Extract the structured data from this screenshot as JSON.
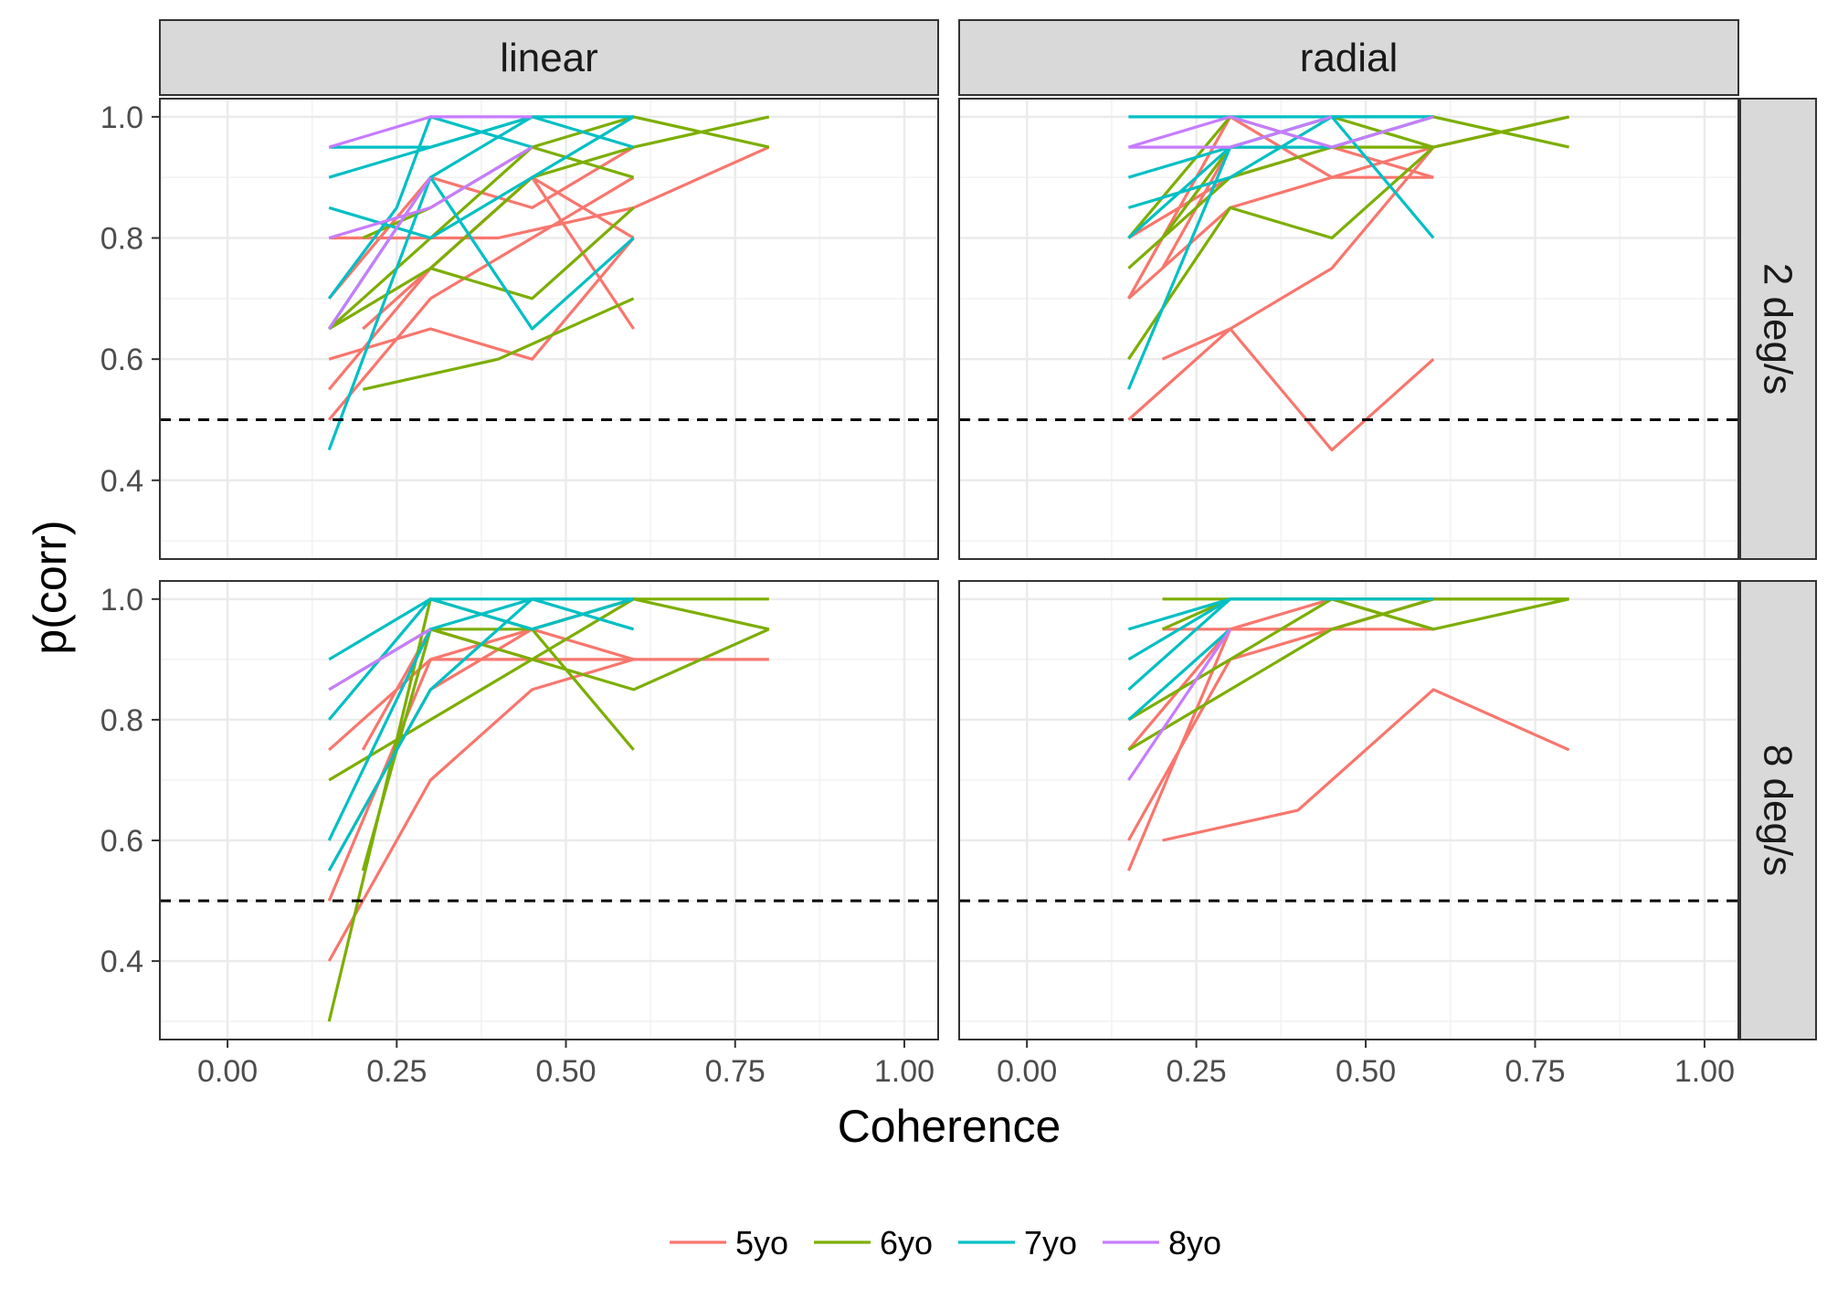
{
  "chart_data": {
    "type": "line",
    "facets": {
      "columns": [
        "linear",
        "radial"
      ],
      "rows": [
        "2 deg/s",
        "8 deg/s"
      ]
    },
    "xlabel": "Coherence",
    "ylabel": "p(corr)",
    "xlim": [
      -0.1,
      1.05
    ],
    "ylim": [
      0.27,
      1.03
    ],
    "x_ticks": [
      0.0,
      0.25,
      0.5,
      0.75,
      1.0
    ],
    "x_tick_labels": [
      "0.00",
      "0.25",
      "0.50",
      "0.75",
      "1.00"
    ],
    "y_ticks": [
      0.4,
      0.6,
      0.8,
      1.0
    ],
    "y_tick_labels": [
      "0.4",
      "0.6",
      "0.8",
      "1.0"
    ],
    "reference_line": {
      "y": 0.5,
      "style": "dashed",
      "color": "#000000"
    },
    "grid": true,
    "legend_position": "bottom",
    "groups": [
      {
        "name": "5yo",
        "color": "#F8766D"
      },
      {
        "name": "6yo",
        "color": "#7CAE00"
      },
      {
        "name": "7yo",
        "color": "#00BFC4"
      },
      {
        "name": "8yo",
        "color": "#C77CFF"
      }
    ],
    "panels": [
      {
        "col": "linear",
        "row": "2 deg/s",
        "series": [
          {
            "group": "5yo",
            "x": [
              0.15,
              0.3,
              0.45,
              0.6
            ],
            "y": [
              0.55,
              0.75,
              0.9,
              0.65
            ]
          },
          {
            "group": "5yo",
            "x": [
              0.15,
              0.3,
              0.45,
              0.6
            ],
            "y": [
              0.6,
              0.65,
              0.6,
              0.8
            ]
          },
          {
            "group": "5yo",
            "x": [
              0.15,
              0.3,
              0.45,
              0.6
            ],
            "y": [
              0.7,
              0.9,
              0.85,
              0.95
            ]
          },
          {
            "group": "5yo",
            "x": [
              0.15,
              0.3,
              0.45,
              0.6
            ],
            "y": [
              0.5,
              0.7,
              0.8,
              0.9
            ]
          },
          {
            "group": "5yo",
            "x": [
              0.15,
              0.4,
              0.6,
              0.8
            ],
            "y": [
              0.8,
              0.8,
              0.85,
              0.95
            ]
          },
          {
            "group": "5yo",
            "x": [
              0.2,
              0.45,
              0.6
            ],
            "y": [
              0.65,
              0.9,
              0.8
            ]
          },
          {
            "group": "6yo",
            "x": [
              0.2,
              0.4,
              0.6
            ],
            "y": [
              0.55,
              0.6,
              0.7
            ]
          },
          {
            "group": "6yo",
            "x": [
              0.15,
              0.3,
              0.45,
              0.6
            ],
            "y": [
              0.65,
              0.75,
              0.7,
              0.85
            ]
          },
          {
            "group": "6yo",
            "x": [
              0.15,
              0.45,
              0.6,
              0.8
            ],
            "y": [
              0.65,
              0.95,
              1.0,
              0.95
            ]
          },
          {
            "group": "6yo",
            "x": [
              0.2,
              0.3,
              0.45,
              0.6
            ],
            "y": [
              0.8,
              0.85,
              0.95,
              0.9
            ]
          },
          {
            "group": "6yo",
            "x": [
              0.3,
              0.45,
              0.6,
              0.8
            ],
            "y": [
              0.75,
              0.9,
              0.95,
              1.0
            ]
          },
          {
            "group": "7yo",
            "x": [
              0.15,
              0.3,
              0.45,
              0.6
            ],
            "y": [
              0.45,
              0.9,
              0.65,
              0.8
            ]
          },
          {
            "group": "7yo",
            "x": [
              0.15,
              0.3,
              0.45,
              0.6
            ],
            "y": [
              0.9,
              0.95,
              1.0,
              1.0
            ]
          },
          {
            "group": "7yo",
            "x": [
              0.15,
              0.3,
              0.45,
              0.6
            ],
            "y": [
              0.95,
              0.95,
              1.0,
              0.95
            ]
          },
          {
            "group": "7yo",
            "x": [
              0.15,
              0.25,
              0.3,
              0.45
            ],
            "y": [
              0.7,
              0.85,
              1.0,
              0.95
            ]
          },
          {
            "group": "7yo",
            "x": [
              0.15,
              0.3,
              0.45,
              0.6
            ],
            "y": [
              0.85,
              0.8,
              0.9,
              1.0
            ]
          },
          {
            "group": "7yo",
            "x": [
              0.15,
              0.3,
              0.45
            ],
            "y": [
              0.65,
              0.9,
              1.0
            ]
          },
          {
            "group": "8yo",
            "x": [
              0.15,
              0.3,
              0.45
            ],
            "y": [
              0.95,
              1.0,
              1.0
            ]
          },
          {
            "group": "8yo",
            "x": [
              0.15,
              0.3,
              0.45
            ],
            "y": [
              0.8,
              0.85,
              0.95
            ]
          },
          {
            "group": "8yo",
            "x": [
              0.15,
              0.3
            ],
            "y": [
              0.65,
              0.9
            ]
          }
        ]
      },
      {
        "col": "radial",
        "row": "2 deg/s",
        "series": [
          {
            "group": "5yo",
            "x": [
              0.15,
              0.3,
              0.45,
              0.6
            ],
            "y": [
              0.5,
              0.65,
              0.45,
              0.6
            ]
          },
          {
            "group": "5yo",
            "x": [
              0.2,
              0.3,
              0.45,
              0.6
            ],
            "y": [
              0.6,
              0.65,
              0.75,
              0.95
            ]
          },
          {
            "group": "5yo",
            "x": [
              0.15,
              0.3,
              0.45,
              0.6
            ],
            "y": [
              0.7,
              1.0,
              0.9,
              0.9
            ]
          },
          {
            "group": "5yo",
            "x": [
              0.15,
              0.3,
              0.45,
              0.6,
              0.8
            ],
            "y": [
              0.7,
              0.85,
              0.9,
              0.95,
              1.0
            ]
          },
          {
            "group": "5yo",
            "x": [
              0.15,
              0.3,
              0.45,
              0.6
            ],
            "y": [
              0.8,
              0.9,
              0.95,
              0.9
            ]
          },
          {
            "group": "5yo",
            "x": [
              0.2,
              0.3,
              0.45,
              0.6
            ],
            "y": [
              0.75,
              0.95,
              0.95,
              1.0
            ]
          },
          {
            "group": "6yo",
            "x": [
              0.15,
              0.3,
              0.45,
              0.6
            ],
            "y": [
              0.6,
              0.85,
              0.8,
              0.95
            ]
          },
          {
            "group": "6yo",
            "x": [
              0.15,
              0.3,
              0.45,
              0.6,
              0.8
            ],
            "y": [
              0.75,
              0.9,
              0.95,
              1.0,
              0.95
            ]
          },
          {
            "group": "6yo",
            "x": [
              0.15,
              0.3,
              0.45,
              0.6
            ],
            "y": [
              0.8,
              1.0,
              0.95,
              0.95
            ]
          },
          {
            "group": "6yo",
            "x": [
              0.2,
              0.3,
              0.45,
              0.6,
              0.8
            ],
            "y": [
              0.8,
              0.95,
              1.0,
              0.95,
              1.0
            ]
          },
          {
            "group": "7yo",
            "x": [
              0.15,
              0.3,
              0.45,
              0.6
            ],
            "y": [
              0.55,
              0.95,
              1.0,
              1.0
            ]
          },
          {
            "group": "7yo",
            "x": [
              0.15,
              0.3,
              0.45,
              0.6
            ],
            "y": [
              0.85,
              0.9,
              1.0,
              0.8
            ]
          },
          {
            "group": "7yo",
            "x": [
              0.15,
              0.3,
              0.45,
              0.6
            ],
            "y": [
              1.0,
              1.0,
              1.0,
              1.0
            ]
          },
          {
            "group": "7yo",
            "x": [
              0.15,
              0.3,
              0.45,
              0.6
            ],
            "y": [
              0.9,
              0.95,
              0.95,
              1.0
            ]
          },
          {
            "group": "7yo",
            "x": [
              0.15,
              0.3,
              0.45
            ],
            "y": [
              0.8,
              0.95,
              1.0
            ]
          },
          {
            "group": "8yo",
            "x": [
              0.15,
              0.3,
              0.45
            ],
            "y": [
              0.95,
              0.95,
              1.0
            ]
          },
          {
            "group": "8yo",
            "x": [
              0.15,
              0.3,
              0.45,
              0.6
            ],
            "y": [
              0.95,
              1.0,
              0.95,
              1.0
            ]
          }
        ]
      },
      {
        "col": "linear",
        "row": "8 deg/s",
        "series": [
          {
            "group": "5yo",
            "x": [
              0.15,
              0.3,
              0.45,
              0.6,
              0.8
            ],
            "y": [
              0.4,
              0.7,
              0.85,
              0.9,
              0.9
            ]
          },
          {
            "group": "5yo",
            "x": [
              0.15,
              0.3,
              0.45,
              0.6
            ],
            "y": [
              0.5,
              0.9,
              0.9,
              0.9
            ]
          },
          {
            "group": "5yo",
            "x": [
              0.15,
              0.3,
              0.45,
              0.6
            ],
            "y": [
              0.75,
              0.9,
              0.95,
              1.0
            ]
          },
          {
            "group": "5yo",
            "x": [
              0.15,
              0.3,
              0.45,
              0.6
            ],
            "y": [
              0.55,
              0.85,
              0.95,
              0.9
            ]
          },
          {
            "group": "5yo",
            "x": [
              0.2,
              0.3,
              0.45
            ],
            "y": [
              0.75,
              0.95,
              0.9
            ]
          },
          {
            "group": "6yo",
            "x": [
              0.15,
              0.3,
              0.45,
              0.6
            ],
            "y": [
              0.3,
              1.0,
              0.95,
              0.75
            ]
          },
          {
            "group": "6yo",
            "x": [
              0.15,
              0.3,
              0.45,
              0.6,
              0.8
            ],
            "y": [
              0.7,
              0.8,
              0.9,
              1.0,
              0.95
            ]
          },
          {
            "group": "6yo",
            "x": [
              0.15,
              0.3,
              0.45,
              0.6,
              0.8
            ],
            "y": [
              0.85,
              0.95,
              0.95,
              1.0,
              1.0
            ]
          },
          {
            "group": "6yo",
            "x": [
              0.2,
              0.3,
              0.45,
              0.6,
              0.8
            ],
            "y": [
              0.55,
              0.95,
              0.9,
              0.85,
              0.95
            ]
          },
          {
            "group": "7yo",
            "x": [
              0.15,
              0.3,
              0.45,
              0.6
            ],
            "y": [
              0.9,
              1.0,
              1.0,
              1.0
            ]
          },
          {
            "group": "7yo",
            "x": [
              0.15,
              0.3,
              0.45,
              0.6
            ],
            "y": [
              0.6,
              0.95,
              1.0,
              0.95
            ]
          },
          {
            "group": "7yo",
            "x": [
              0.15,
              0.3,
              0.45,
              0.6
            ],
            "y": [
              0.55,
              0.85,
              1.0,
              1.0
            ]
          },
          {
            "group": "7yo",
            "x": [
              0.15,
              0.3,
              0.45,
              0.6
            ],
            "y": [
              0.8,
              1.0,
              0.95,
              1.0
            ]
          },
          {
            "group": "8yo",
            "x": [
              0.15,
              0.3
            ],
            "y": [
              0.85,
              0.95
            ]
          }
        ]
      },
      {
        "col": "radial",
        "row": "8 deg/s",
        "series": [
          {
            "group": "5yo",
            "x": [
              0.2,
              0.4,
              0.6,
              0.8
            ],
            "y": [
              0.6,
              0.65,
              0.85,
              0.75
            ]
          },
          {
            "group": "5yo",
            "x": [
              0.15,
              0.3,
              0.45,
              0.6
            ],
            "y": [
              0.55,
              0.95,
              0.95,
              0.95
            ]
          },
          {
            "group": "5yo",
            "x": [
              0.15,
              0.3,
              0.45,
              0.6
            ],
            "y": [
              0.6,
              0.9,
              0.95,
              1.0
            ]
          },
          {
            "group": "5yo",
            "x": [
              0.15,
              0.3,
              0.45,
              0.6
            ],
            "y": [
              0.75,
              0.95,
              0.95,
              1.0
            ]
          },
          {
            "group": "5yo",
            "x": [
              0.2,
              0.3,
              0.45,
              0.6
            ],
            "y": [
              0.95,
              0.95,
              1.0,
              1.0
            ]
          },
          {
            "group": "6yo",
            "x": [
              0.15,
              0.3,
              0.45,
              0.6,
              0.8
            ],
            "y": [
              0.8,
              0.9,
              1.0,
              0.95,
              1.0
            ]
          },
          {
            "group": "6yo",
            "x": [
              0.15,
              0.3,
              0.45,
              0.6,
              0.8
            ],
            "y": [
              0.75,
              0.85,
              0.95,
              1.0,
              1.0
            ]
          },
          {
            "group": "6yo",
            "x": [
              0.2,
              0.3,
              0.45,
              0.6,
              0.8
            ],
            "y": [
              1.0,
              1.0,
              1.0,
              1.0,
              1.0
            ]
          },
          {
            "group": "6yo",
            "x": [
              0.2,
              0.3,
              0.45,
              0.6
            ],
            "y": [
              0.95,
              1.0,
              1.0,
              0.95
            ]
          },
          {
            "group": "7yo",
            "x": [
              0.15,
              0.3,
              0.45,
              0.6
            ],
            "y": [
              0.95,
              1.0,
              1.0,
              1.0
            ]
          },
          {
            "group": "7yo",
            "x": [
              0.15,
              0.3,
              0.45
            ],
            "y": [
              0.9,
              1.0,
              1.0
            ]
          },
          {
            "group": "7yo",
            "x": [
              0.15,
              0.3
            ],
            "y": [
              0.85,
              1.0
            ]
          },
          {
            "group": "7yo",
            "x": [
              0.15,
              0.3
            ],
            "y": [
              0.8,
              0.95
            ]
          },
          {
            "group": "8yo",
            "x": [
              0.15,
              0.3
            ],
            "y": [
              0.7,
              0.95
            ]
          }
        ]
      }
    ]
  }
}
